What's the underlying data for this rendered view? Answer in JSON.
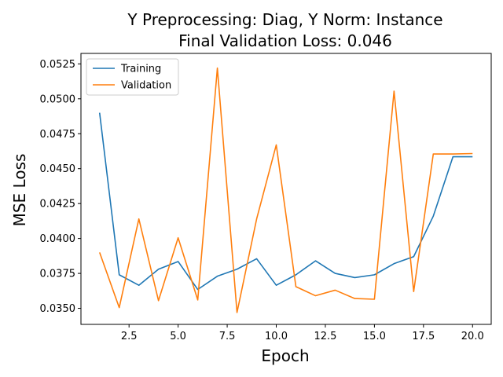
{
  "chart_data": {
    "type": "line",
    "title_line1": "Y Preprocessing: Diag, Y Norm: Instance",
    "title_line2": "Final Validation Loss: 0.046",
    "xlabel": "Epoch",
    "ylabel": "MSE Loss",
    "xlim": [
      0.05,
      20.95
    ],
    "ylim": [
      0.03385,
      0.05325
    ],
    "x": [
      1,
      2,
      3,
      4,
      5,
      6,
      7,
      8,
      9,
      10,
      11,
      12,
      13,
      14,
      15,
      16,
      17,
      18,
      19,
      20
    ],
    "xticks": [
      2.5,
      5.0,
      7.5,
      10.0,
      12.5,
      15.0,
      17.5,
      20.0
    ],
    "xtick_labels": [
      "2.5",
      "5.0",
      "7.5",
      "10.0",
      "12.5",
      "15.0",
      "17.5",
      "20.0"
    ],
    "yticks": [
      0.035,
      0.0375,
      0.04,
      0.0425,
      0.045,
      0.0475,
      0.05,
      0.0525
    ],
    "ytick_labels": [
      "0.0350",
      "0.0375",
      "0.0400",
      "0.0425",
      "0.0450",
      "0.0475",
      "0.0500",
      "0.0525"
    ],
    "grid": false,
    "legend_position": "top-left",
    "series": [
      {
        "name": "Training",
        "color": "#1f77b4",
        "values": [
          0.049,
          0.0374,
          0.03665,
          0.0378,
          0.03835,
          0.03635,
          0.0373,
          0.0378,
          0.03855,
          0.03665,
          0.0374,
          0.0384,
          0.0375,
          0.0372,
          0.0374,
          0.0382,
          0.0387,
          0.0416,
          0.04585,
          0.04585
        ]
      },
      {
        "name": "Validation",
        "color": "#ff7f0e",
        "values": [
          0.039,
          0.03505,
          0.0414,
          0.03555,
          0.04005,
          0.0356,
          0.0522,
          0.0347,
          0.0414,
          0.0467,
          0.03655,
          0.0359,
          0.0363,
          0.0357,
          0.03565,
          0.05055,
          0.0362,
          0.04605,
          0.04605,
          0.04608
        ]
      }
    ]
  }
}
